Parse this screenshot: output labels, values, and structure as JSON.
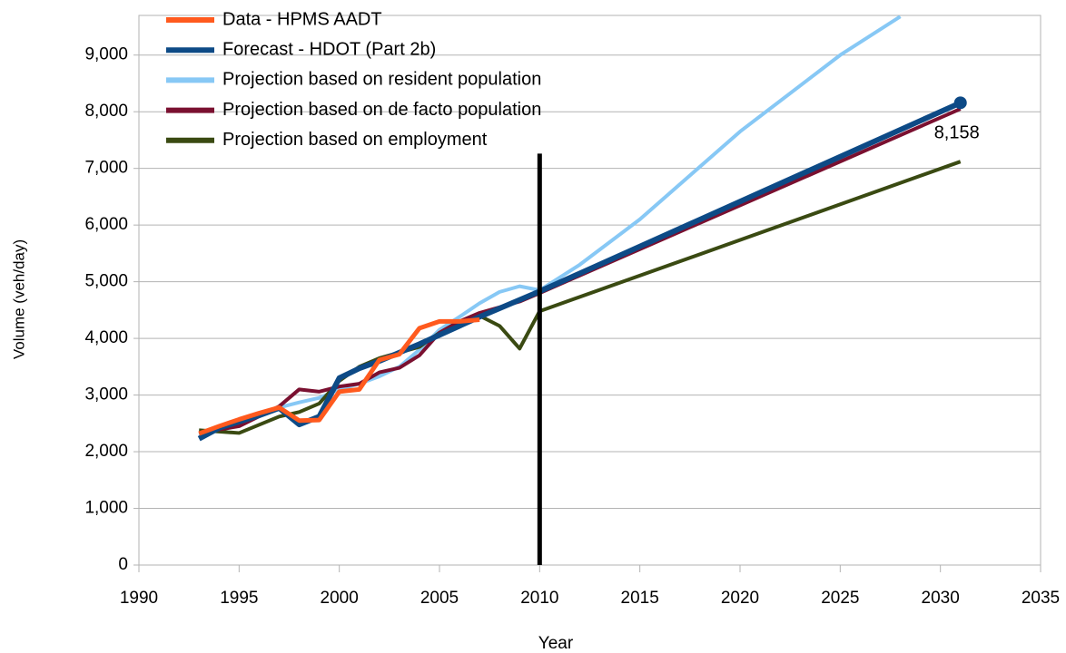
{
  "chart_data": {
    "type": "line",
    "xlabel": "Year",
    "ylabel": "Volume (veh/day)",
    "xlim": [
      1990,
      2035
    ],
    "xticks": [
      1990,
      1995,
      2000,
      2005,
      2010,
      2015,
      2020,
      2025,
      2030,
      2035
    ],
    "ylim": [
      0,
      9700
    ],
    "yticks": [
      0,
      {
        "value": 1000,
        "label": "1,000"
      },
      {
        "value": 2000,
        "label": "2,000"
      },
      {
        "value": 3000,
        "label": "3,000"
      },
      {
        "value": 4000,
        "label": "4,000"
      },
      {
        "value": 5000,
        "label": "5,000"
      },
      {
        "value": 6000,
        "label": "6,000"
      },
      {
        "value": 7000,
        "label": "7,000"
      },
      {
        "value": 8000,
        "label": "8,000"
      },
      {
        "value": 9000,
        "label": "9,000"
      }
    ],
    "grid": true,
    "legend": "upper left",
    "vertical_line": {
      "x": 2010,
      "ymax": 7260,
      "color": "#000000"
    },
    "series": [
      {
        "name": "Data - HPMS AADT",
        "color": "#ff5a1e",
        "x": [
          1993,
          1994,
          1995,
          1996,
          1997,
          1998,
          1999,
          2000,
          2001,
          2002,
          2003,
          2004,
          2005,
          2006,
          2007
        ],
        "values": [
          2320,
          2450,
          2570,
          2680,
          2780,
          2550,
          2560,
          3060,
          3100,
          3620,
          3720,
          4180,
          4300,
          4300,
          4330
        ]
      },
      {
        "name": "Forecast - HDOT (Part 2b)",
        "color": "#0d4a86",
        "x": [
          1993,
          1994,
          1995,
          1996,
          1997,
          1998,
          1999,
          2000,
          2001,
          2002,
          2003,
          2004,
          2005,
          2006,
          2007,
          2008,
          2009,
          2010,
          2031
        ],
        "values": [
          2230,
          2420,
          2530,
          2640,
          2770,
          2480,
          2620,
          3300,
          3470,
          3600,
          3750,
          3900,
          4060,
          4220,
          4380,
          4530,
          4680,
          4830,
          8158
        ],
        "value_labels": [
          null,
          null,
          null,
          null,
          null,
          null,
          null,
          null,
          null,
          null,
          null,
          null,
          null,
          null,
          null,
          null,
          null,
          null,
          "8,158"
        ]
      },
      {
        "name": "Projection based on resident population",
        "color": "#87c8f5",
        "x": [
          1993,
          1995,
          1997,
          1998,
          1999,
          2000,
          2001,
          2002,
          2003,
          2004,
          2005,
          2006,
          2007,
          2008,
          2009,
          2010,
          2012,
          2015,
          2020,
          2025,
          2028
        ],
        "values": [
          2300,
          2500,
          2780,
          2870,
          2950,
          3100,
          3200,
          3330,
          3500,
          3800,
          4150,
          4380,
          4620,
          4820,
          4920,
          4850,
          5300,
          6100,
          7650,
          9000,
          9680
        ]
      },
      {
        "name": "Projection based on de facto population",
        "color": "#7a1030",
        "x": [
          1993,
          1995,
          1997,
          1998,
          1999,
          2000,
          2001,
          2002,
          2003,
          2004,
          2005,
          2006,
          2007,
          2008,
          2009,
          2010,
          2031
        ],
        "values": [
          2330,
          2450,
          2800,
          3100,
          3060,
          3150,
          3200,
          3400,
          3480,
          3700,
          4100,
          4300,
          4450,
          4550,
          4650,
          4800,
          8050
        ]
      },
      {
        "name": "Projection based on employment",
        "color": "#3a4a12",
        "x": [
          1993,
          1995,
          1997,
          1998,
          1999,
          2000,
          2001,
          2002,
          2003,
          2004,
          2005,
          2006,
          2007,
          2008,
          2009,
          2010,
          2031
        ],
        "values": [
          2380,
          2330,
          2620,
          2700,
          2850,
          3250,
          3500,
          3650,
          3750,
          3850,
          4100,
          4300,
          4400,
          4220,
          3820,
          4480,
          7120
        ]
      }
    ]
  }
}
